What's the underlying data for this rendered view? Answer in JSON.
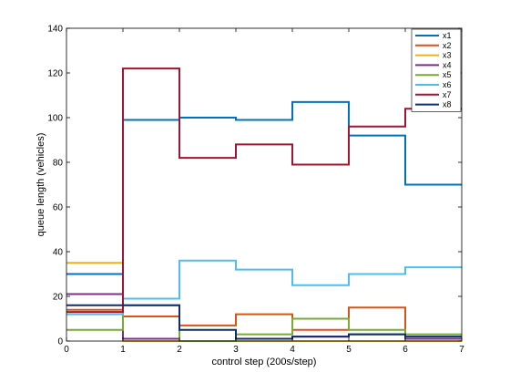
{
  "chart_data": {
    "type": "line",
    "step": true,
    "xlabel": "control step (200s/step)",
    "ylabel": "queue length (vehicles)",
    "xlim": [
      0,
      7
    ],
    "ylim": [
      0,
      140
    ],
    "xticks": [
      0,
      1,
      2,
      3,
      4,
      5,
      6,
      7
    ],
    "yticks": [
      0,
      20,
      40,
      60,
      80,
      100,
      120,
      140
    ],
    "grid": false,
    "legend_position": "top-right",
    "x": [
      0,
      1,
      2,
      3,
      4,
      5,
      6,
      7
    ],
    "series": [
      {
        "name": "x1",
        "color": "#0072BD",
        "values": [
          30,
          99,
          100,
          99,
          107,
          92,
          70,
          70
        ]
      },
      {
        "name": "x2",
        "color": "#D95319",
        "values": [
          14,
          11,
          7,
          12,
          5,
          15,
          1,
          1
        ]
      },
      {
        "name": "x3",
        "color": "#EDB120",
        "values": [
          35,
          0,
          0,
          0,
          0,
          0,
          0,
          0
        ]
      },
      {
        "name": "x4",
        "color": "#7E2F8E",
        "values": [
          21,
          1,
          0,
          1,
          2,
          3,
          1,
          1
        ]
      },
      {
        "name": "x5",
        "color": "#77AC30",
        "values": [
          5,
          16,
          0,
          3,
          10,
          5,
          3,
          3
        ]
      },
      {
        "name": "x6",
        "color": "#4DBEEE",
        "values": [
          12,
          19,
          36,
          32,
          25,
          30,
          33,
          33
        ]
      },
      {
        "name": "x7",
        "color": "#A2142F",
        "values": [
          13,
          122,
          82,
          88,
          79,
          96,
          104,
          104
        ]
      },
      {
        "name": "x8",
        "color": "#0E2F6E",
        "values": [
          16,
          16,
          5,
          1,
          2,
          3,
          2,
          2
        ]
      }
    ]
  }
}
